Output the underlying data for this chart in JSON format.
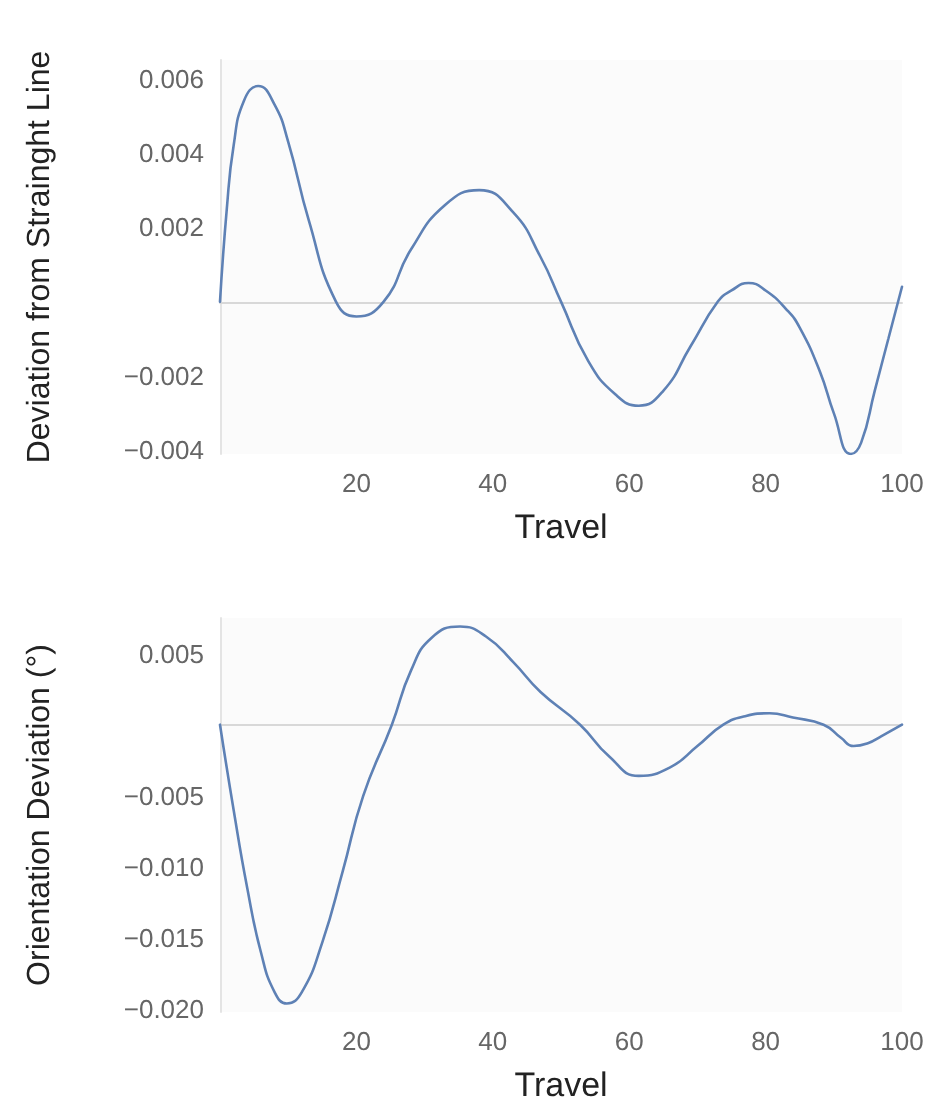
{
  "chart_data": [
    {
      "type": "line",
      "xlabel": "Travel",
      "ylabel": "Deviation from Strainght Line",
      "xlim": [
        0,
        100
      ],
      "ylim": [
        -0.0041,
        0.0065
      ],
      "xticks": [
        20,
        40,
        60,
        80,
        100
      ],
      "yticks": [
        0.006,
        0.004,
        0.002,
        {
          "value": -0.002,
          "label": "−0.002"
        },
        {
          "value": -0.004,
          "label": "−0.004"
        }
      ],
      "grid": false,
      "marker": "none",
      "series": [
        {
          "color": "#5e81b5",
          "x": [
            0,
            1,
            2,
            3.5,
            5.6,
            8,
            10,
            13,
            17,
            20,
            24,
            28,
            33,
            38,
            43,
            47,
            50,
            54,
            58,
            61.4,
            65,
            69,
            73,
            75,
            77.5,
            80,
            83,
            85,
            88,
            90,
            92.5,
            94,
            96,
            98,
            100
          ],
          "values": [
            0,
            0.0025,
            0.0042,
            0.0054,
            0.0058,
            0.0053,
            0.0043,
            0.0022,
            0,
            -0.0004,
            0,
            0.0014,
            0.0026,
            0.003,
            0.0024,
            0.0012,
            0,
            -0.0016,
            -0.0025,
            -0.0028,
            -0.0024,
            -0.0012,
            0,
            0.0003,
            0.0005,
            0.0003,
            -0.0002,
            -0.0007,
            -0.0019,
            -0.003,
            -0.0041,
            -0.0038,
            -0.0024,
            -0.001,
            0.0004
          ]
        }
      ]
    },
    {
      "type": "line",
      "xlabel": "Travel",
      "ylabel": "Orientation Deviation (°)",
      "xlim": [
        0,
        100
      ],
      "ylim": [
        -0.0202,
        0.0075
      ],
      "xticks": [
        20,
        40,
        60,
        80,
        100
      ],
      "yticks": [
        0.005,
        {
          "value": -0.005,
          "label": "−0.005"
        },
        {
          "value": -0.01,
          "label": "−0.010"
        },
        {
          "value": -0.015,
          "label": "−0.015"
        },
        {
          "value": -0.02,
          "label": "−0.020"
        }
      ],
      "grid": false,
      "marker": "none",
      "series": [
        {
          "color": "#5e81b5",
          "x": [
            0,
            2,
            4,
            6,
            8,
            9.8,
            12,
            15,
            18,
            21,
            25.2,
            28,
            31,
            35.2,
            39,
            43,
            47,
            52.8,
            57,
            61.4,
            66,
            70,
            73.8,
            77,
            80.6,
            84,
            88.5,
            91,
            92.9,
            95,
            97,
            100
          ],
          "values": [
            0,
            -0.006,
            -0.0115,
            -0.016,
            -0.0188,
            -0.0196,
            -0.0188,
            -0.0153,
            -0.0103,
            -0.005,
            0,
            0.0038,
            0.0061,
            0.0069,
            0.0062,
            0.0044,
            0.0023,
            0,
            -0.0022,
            -0.0036,
            -0.003,
            -0.0015,
            0,
            0.0006,
            0.0008,
            0.0005,
            0,
            -0.0009,
            -0.0015,
            -0.0013,
            -0.0008,
            0
          ]
        }
      ]
    }
  ]
}
